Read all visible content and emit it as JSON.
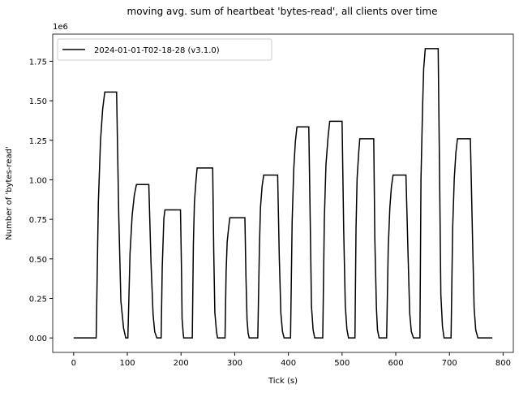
{
  "chart_data": {
    "type": "line",
    "title": "moving avg. sum of heartbeat 'bytes-read', all clients over time",
    "x_label": "Tick (s)",
    "y_label": "Number of 'bytes-read'",
    "y_offset_label": "1e6",
    "legend": "upper left",
    "xlim": [
      -39,
      819
    ],
    "ylim": [
      -0.0915,
      1.9215
    ],
    "xticks": [
      0,
      100,
      200,
      300,
      400,
      500,
      600,
      700,
      800
    ],
    "yticks": [
      {
        "value": 0,
        "label": "0.00"
      },
      {
        "value": 0.25,
        "label": "0.25"
      },
      {
        "value": 0.5,
        "label": "0.50"
      },
      {
        "value": 0.75,
        "label": "0.75"
      },
      {
        "value": 1,
        "label": "1.00"
      },
      {
        "value": 1.25,
        "label": "1.25"
      },
      {
        "value": 1.5,
        "label": "1.50"
      },
      {
        "value": 1.75,
        "label": "1.75"
      }
    ],
    "x": [
      0,
      42,
      46,
      50,
      54,
      58,
      80,
      84,
      88,
      93,
      97,
      101,
      105,
      109,
      113,
      117,
      140,
      144,
      148,
      151,
      155,
      163,
      165,
      167,
      168,
      170,
      199,
      201,
      202,
      204,
      205,
      221,
      223,
      225,
      228,
      230,
      259,
      261,
      263,
      266,
      268,
      282,
      284,
      286,
      289,
      291,
      319,
      321,
      323,
      325,
      327,
      343,
      346,
      348,
      351,
      354,
      380,
      383,
      386,
      389,
      392,
      404,
      407,
      410,
      413,
      416,
      438,
      441,
      443,
      446,
      449,
      464,
      467,
      470,
      474,
      477,
      500,
      503,
      506,
      509,
      512,
      524,
      526,
      528,
      531,
      533,
      559,
      561,
      564,
      566,
      569,
      583,
      586,
      589,
      592,
      595,
      619,
      623,
      626,
      629,
      633,
      645,
      647,
      650,
      652,
      655,
      679,
      682,
      684,
      687,
      690,
      703,
      706,
      709,
      712,
      715,
      739,
      743,
      746,
      749,
      753,
      780
    ],
    "series": [
      {
        "name": "2024-01-01-T02-18-28 (v3.1.0)",
        "color": "#000000",
        "values": [
          0,
          0,
          0.855,
          1.244,
          1.446,
          1.555,
          1.555,
          0.778,
          0.233,
          0.062,
          0,
          0,
          0.534,
          0.776,
          0.902,
          0.97,
          0.97,
          0.485,
          0.146,
          0.039,
          0,
          0,
          0.446,
          0.648,
          0.753,
          0.81,
          0.81,
          0.405,
          0.122,
          0.032,
          0,
          0,
          0.591,
          0.86,
          1.0,
          1.075,
          1.075,
          0.538,
          0.161,
          0.043,
          0,
          0,
          0.418,
          0.608,
          0.707,
          0.76,
          0.76,
          0.38,
          0.114,
          0.03,
          0,
          0,
          0.567,
          0.824,
          0.958,
          1.03,
          1.03,
          0.515,
          0.155,
          0.041,
          0,
          0,
          0.734,
          1.068,
          1.242,
          1.335,
          1.335,
          0.668,
          0.2,
          0.053,
          0,
          0,
          0.754,
          1.096,
          1.274,
          1.37,
          1.37,
          0.685,
          0.206,
          0.055,
          0,
          0,
          0.693,
          1.008,
          1.172,
          1.26,
          1.26,
          0.63,
          0.189,
          0.05,
          0,
          0,
          0.567,
          0.824,
          0.958,
          1.03,
          1.03,
          0.515,
          0.155,
          0.041,
          0,
          0,
          1.007,
          1.464,
          1.702,
          1.83,
          1.83,
          0.915,
          0.275,
          0.073,
          0,
          0,
          0.693,
          1.008,
          1.172,
          1.26,
          1.26,
          0.63,
          0.189,
          0.05,
          0,
          0
        ]
      }
    ]
  }
}
